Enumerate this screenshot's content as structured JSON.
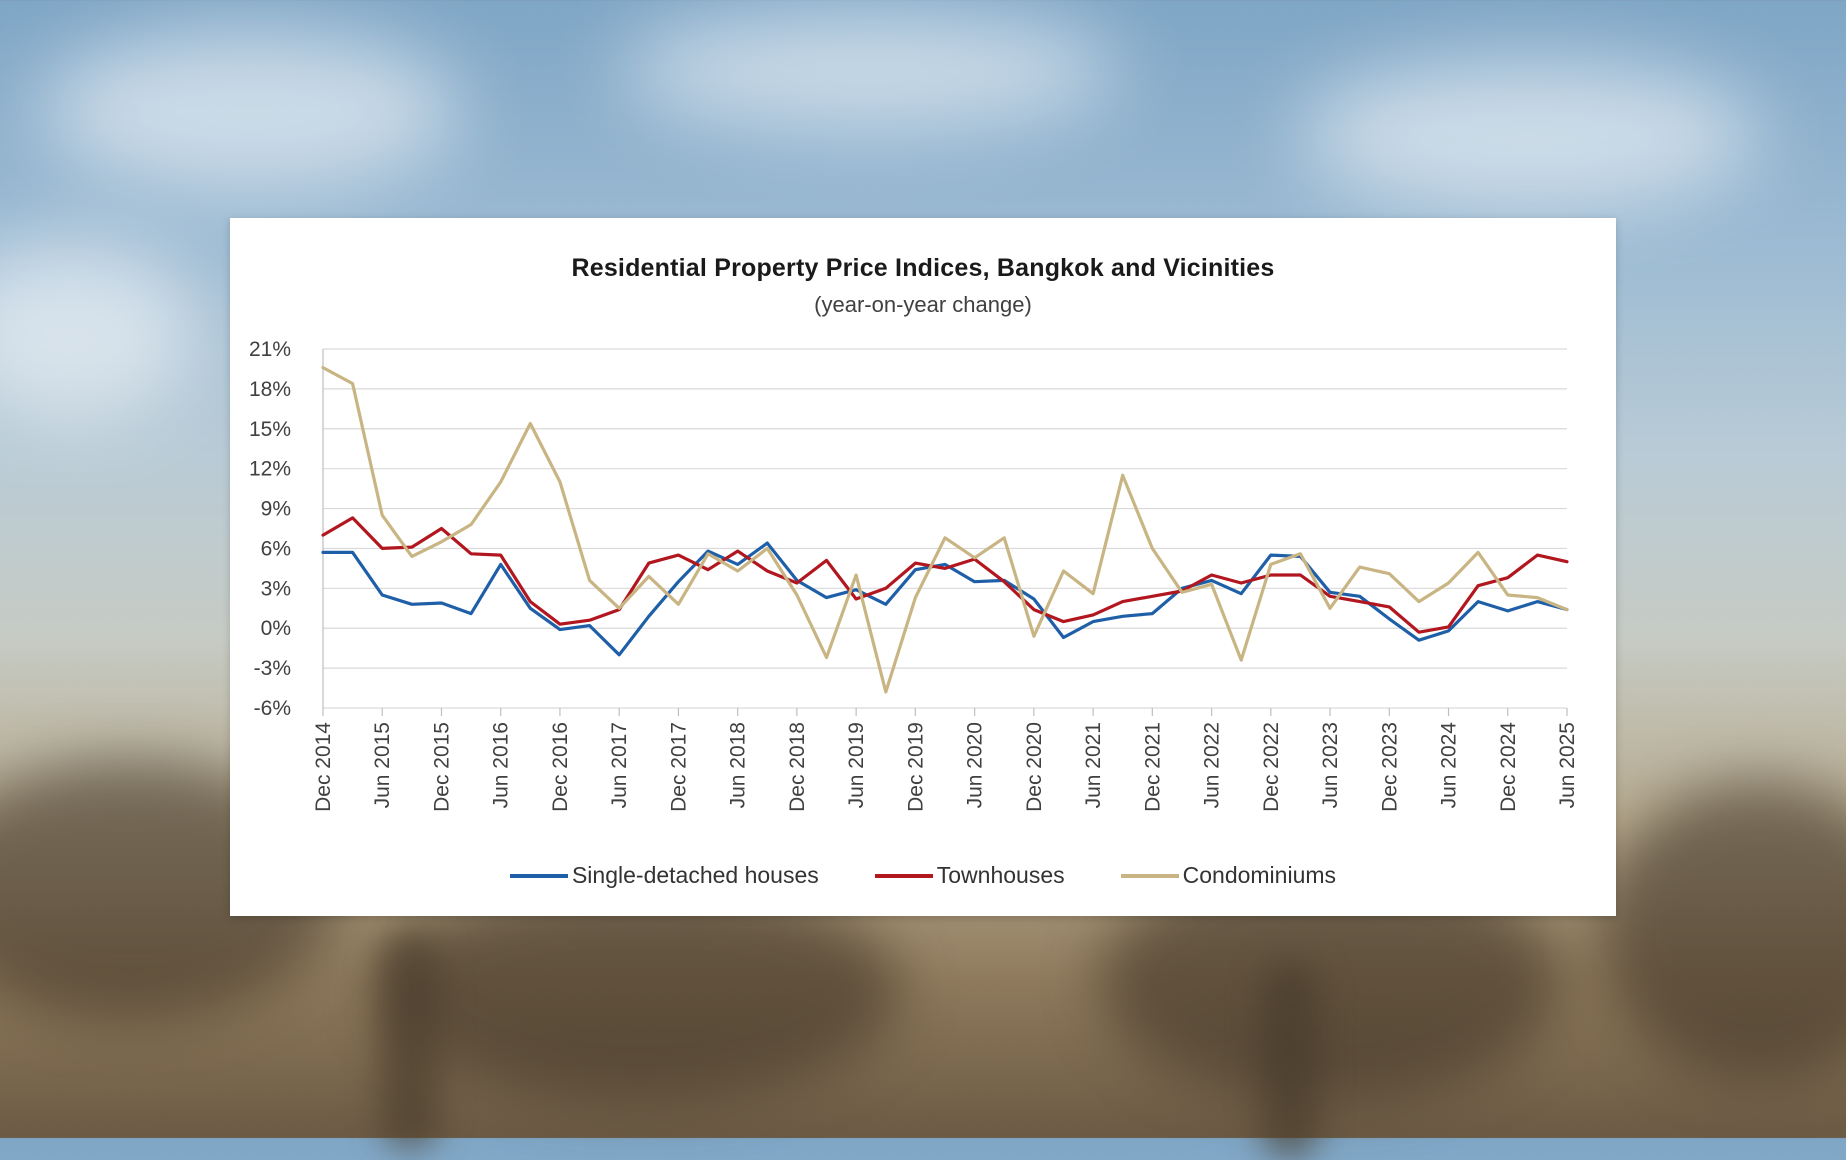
{
  "colors": {
    "single_detached": "#1f5fa8",
    "townhouses": "#b2171f",
    "condominiums": "#c8b583",
    "grid": "#d9d9d9",
    "axis": "#bfbfbf"
  },
  "chart_data": {
    "type": "line",
    "title": "Residential Property Price Indices, Bangkok and Vicinities",
    "subtitle": "(year-on-year  change)",
    "ylim": [
      -6,
      21
    ],
    "yticks": [
      21,
      18,
      15,
      12,
      9,
      6,
      3,
      0,
      -3,
      -6
    ],
    "ytick_labels": [
      "21%",
      "18%",
      "15%",
      "12%",
      "9%",
      "6%",
      "3%",
      "0%",
      "-3%",
      "-6%"
    ],
    "xtick_labels": [
      "Dec 2014",
      "Jun 2015",
      "Dec 2015",
      "Jun 2016",
      "Dec 2016",
      "Jun 2017",
      "Dec 2017",
      "Jun 2018",
      "Dec 2018",
      "Jun 2019",
      "Dec 2019",
      "Jun 2020",
      "Dec 2020",
      "Jun 2021",
      "Dec 2021",
      "Jun 2022",
      "Dec 2022",
      "Jun 2023",
      "Dec 2023",
      "Jun 2024",
      "Dec 2024",
      "Jun 2025"
    ],
    "x": [
      "Q4 2014",
      "Q1 2015",
      "Q2 2015",
      "Q3 2015",
      "Q4 2015",
      "Q1 2016",
      "Q2 2016",
      "Q3 2016",
      "Q4 2016",
      "Q1 2017",
      "Q2 2017",
      "Q3 2017",
      "Q4 2017",
      "Q1 2018",
      "Q2 2018",
      "Q3 2018",
      "Q4 2018",
      "Q1 2019",
      "Q2 2019",
      "Q3 2019",
      "Q4 2019",
      "Q1 2020",
      "Q2 2020",
      "Q3 2020",
      "Q4 2020",
      "Q1 2021",
      "Q2 2021",
      "Q3 2021",
      "Q4 2021",
      "Q1 2022",
      "Q2 2022",
      "Q3 2022",
      "Q4 2022",
      "Q1 2023",
      "Q2 2023",
      "Q3 2023",
      "Q4 2023",
      "Q1 2024",
      "Q2 2024",
      "Q3 2024",
      "Q4 2024",
      "Q1 2025",
      "Q2 2025"
    ],
    "grid": true,
    "legend_position": "bottom",
    "series": [
      {
        "name": "Single-detached houses",
        "color": "#1f5fa8",
        "values": [
          5.7,
          5.7,
          2.5,
          1.8,
          1.9,
          1.1,
          4.8,
          1.5,
          -0.1,
          0.2,
          -2.0,
          0.9,
          3.5,
          5.8,
          4.8,
          6.4,
          3.6,
          2.3,
          2.9,
          1.8,
          4.4,
          4.8,
          3.5,
          3.6,
          2.2,
          -0.7,
          0.5,
          0.9,
          1.1,
          3.0,
          3.6,
          2.6,
          5.5,
          5.4,
          2.7,
          2.4,
          0.7,
          -0.9,
          -0.2,
          2.0,
          1.3,
          2.0,
          1.4
        ]
      },
      {
        "name": "Townhouses",
        "color": "#b2171f",
        "values": [
          7.0,
          8.3,
          6.0,
          6.1,
          7.5,
          5.6,
          5.5,
          2.0,
          0.3,
          0.6,
          1.4,
          4.9,
          5.5,
          4.4,
          5.8,
          4.3,
          3.4,
          5.1,
          2.2,
          3.0,
          4.9,
          4.5,
          5.2,
          3.5,
          1.4,
          0.5,
          1.0,
          2.0,
          2.4,
          2.8,
          4.0,
          3.4,
          4.0,
          4.0,
          2.4,
          2.0,
          1.6,
          -0.3,
          0.1,
          3.2,
          3.8,
          5.5,
          5.0
        ]
      },
      {
        "name": "Condominiums",
        "color": "#c8b583",
        "values": [
          19.6,
          18.4,
          8.5,
          5.4,
          6.5,
          7.8,
          11.0,
          15.4,
          11.0,
          3.6,
          1.5,
          3.9,
          1.8,
          5.6,
          4.3,
          6.0,
          2.5,
          -2.2,
          4.0,
          -4.8,
          2.3,
          6.8,
          5.3,
          6.8,
          -0.6,
          4.3,
          2.6,
          11.5,
          6.0,
          2.7,
          3.3,
          -2.4,
          4.8,
          5.6,
          1.5,
          4.6,
          4.1,
          2.0,
          3.4,
          5.7,
          2.5,
          2.3,
          1.4
        ]
      }
    ]
  }
}
